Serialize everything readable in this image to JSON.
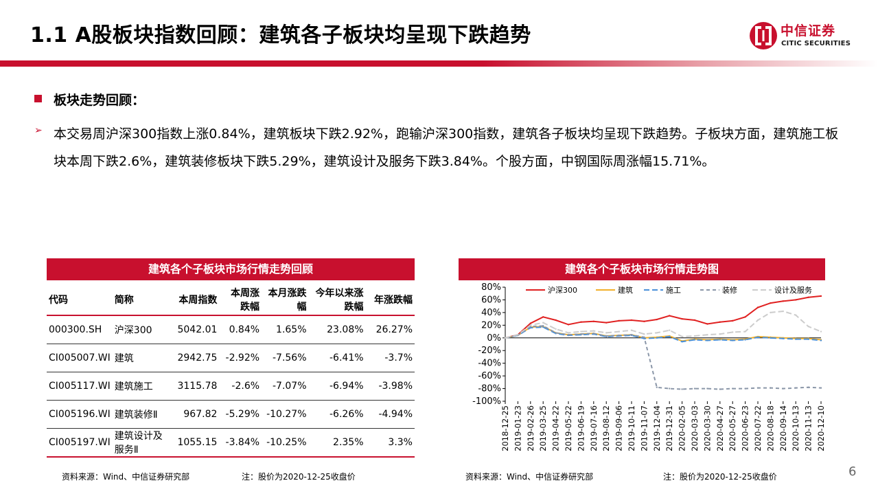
{
  "title": "1.1 A股板块指数回顾：建筑各子板块均呈现下跌趋势",
  "brand": {
    "name_cn": "中信证券",
    "name_en": "CITIC SECURITIES",
    "color": "#c8102e"
  },
  "section": {
    "heading": "板块走势回顾："
  },
  "summary": "本交易周沪深300指数上涨0.84%，建筑板块下跌2.92%，跑输沪深300指数，建筑各子板块均呈现下跌趋势。子板块方面，建筑施工板块本周下跌2.6%，建筑装修板块下跌5.29%，建筑设计及服务下跌3.84%。个股方面，中钢国际周涨幅15.71%。",
  "table": {
    "title": "建筑各个子板块市场行情走势回顾",
    "headers": [
      "代码",
      "简称",
      "本周指数",
      "本周涨跌幅",
      "本月涨跌幅",
      "今年以来涨跌幅",
      "年涨跌幅"
    ],
    "rows": [
      [
        "000300.SH",
        "沪深300",
        "5042.01",
        "0.84%",
        "1.65%",
        "23.08%",
        "26.27%"
      ],
      [
        "CI005007.WI",
        "建筑",
        "2942.75",
        "-2.92%",
        "-7.56%",
        "-6.41%",
        "-3.7%"
      ],
      [
        "CI005117.WI",
        "建筑施工",
        "3115.78",
        "-2.6%",
        "-7.07%",
        "-6.94%",
        "-3.98%"
      ],
      [
        "CI005196.WI",
        "建筑装修Ⅱ",
        "967.82",
        "-5.29%",
        "-10.27%",
        "-6.26%",
        "-4.94%"
      ],
      [
        "CI005197.WI",
        "建筑设计及服务Ⅱ",
        "1055.15",
        "-3.84%",
        "-10.25%",
        "2.35%",
        "3.3%"
      ]
    ],
    "source": "资料来源：Wind、中信证券研究部",
    "note": "注：股价为2020-12-25收盘价"
  },
  "chart_data": {
    "type": "line",
    "title": "建筑各个子板块市场行情走势图",
    "x": [
      "2018-12-25",
      "2019-01-23",
      "2019-02-26",
      "2019-03-25",
      "2019-04-22",
      "2019-05-22",
      "2019-06-19",
      "2019-07-16",
      "2019-08-12",
      "2019-09-06",
      "2019-10-11",
      "2019-11-07",
      "2019-12-04",
      "2019-12-31",
      "2020-02-05",
      "2020-03-03",
      "2020-03-30",
      "2020-04-27",
      "2020-05-27",
      "2020-06-23",
      "2020-07-22",
      "2020-08-18",
      "2020-09-14",
      "2020-10-13",
      "2020-11-13",
      "2020-12-10"
    ],
    "ylim": [
      -100,
      80
    ],
    "yticks": [
      -100,
      -80,
      -60,
      -40,
      -20,
      0,
      20,
      40,
      60,
      80
    ],
    "ytick_labels": [
      "-100%",
      "-80%",
      "-60%",
      "-40%",
      "-20%",
      "0%",
      "20%",
      "40%",
      "60%",
      "80%"
    ],
    "series": [
      {
        "name": "沪深300",
        "color": "#e02020",
        "dash": "",
        "values": [
          0,
          5,
          23,
          33,
          28,
          21,
          25,
          26,
          24,
          27,
          28,
          26,
          29,
          35,
          30,
          28,
          22,
          25,
          27,
          33,
          48,
          55,
          58,
          60,
          64,
          66
        ]
      },
      {
        "name": "建筑",
        "color": "#f2b02a",
        "dash": "",
        "values": [
          0,
          4,
          17,
          18,
          8,
          5,
          6,
          7,
          3,
          4,
          5,
          0,
          1,
          3,
          -5,
          -2,
          -3,
          -2,
          -3,
          -2,
          2,
          1,
          0,
          -1,
          -1,
          -3
        ]
      },
      {
        "name": "施工",
        "color": "#4a90d9",
        "dash": "8,4",
        "values": [
          0,
          4,
          16,
          17,
          7,
          4,
          5,
          6,
          2,
          3,
          4,
          -1,
          0,
          2,
          -6,
          -3,
          -4,
          -3,
          -4,
          -3,
          1,
          0,
          -1,
          -2,
          -2,
          -4
        ]
      },
      {
        "name": "装修",
        "color": "#8a96a8",
        "dash": "5,4",
        "values": [
          0,
          4,
          18,
          19,
          8,
          5,
          6,
          7,
          3,
          4,
          5,
          1,
          -78,
          -80,
          -81,
          -80,
          -80,
          -81,
          -80,
          -80,
          -79,
          -79,
          -80,
          -79,
          -78,
          -79
        ]
      },
      {
        "name": "设计及服务",
        "color": "#cccccc",
        "dash": "8,4",
        "values": [
          0,
          5,
          20,
          24,
          14,
          8,
          10,
          11,
          8,
          10,
          12,
          6,
          8,
          12,
          2,
          3,
          5,
          6,
          9,
          10,
          28,
          40,
          42,
          36,
          18,
          10
        ]
      }
    ],
    "source": "资料来源：Wind、中信证券研究部",
    "note": "注：股价为2020-12-25收盘价"
  },
  "page_number": "6"
}
